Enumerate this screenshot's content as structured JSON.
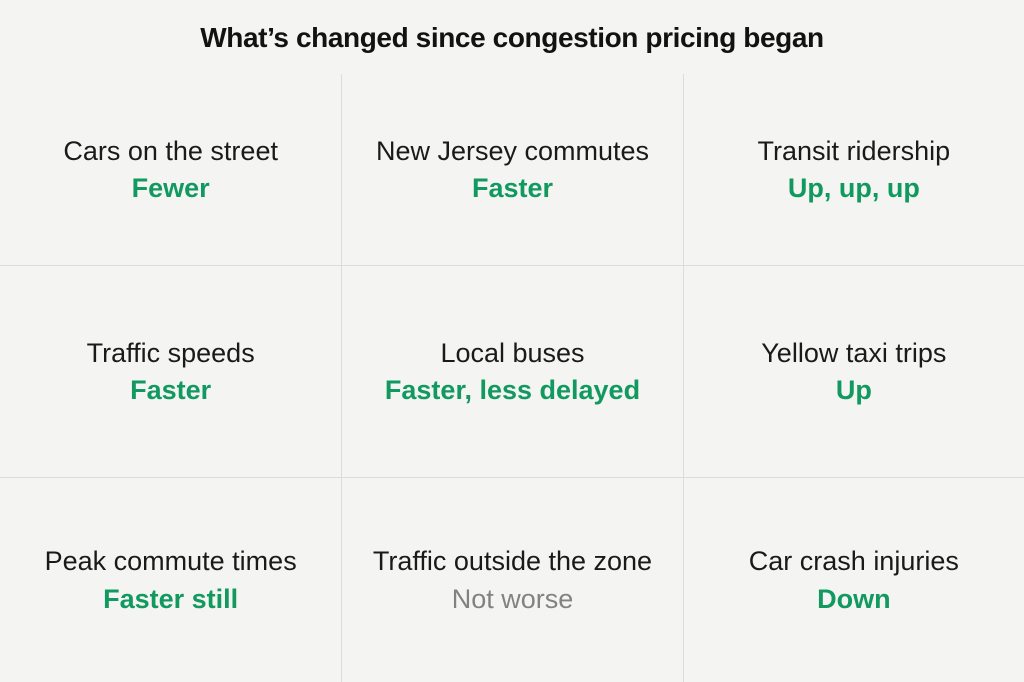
{
  "title": "What’s changed since congestion pricing began",
  "colors": {
    "background": "#f4f4f3",
    "label_text": "#1a1a1a",
    "positive_value": "#12995f",
    "neutral_value": "#828282",
    "grid_line": "#dcdcdb"
  },
  "chart_data": {
    "type": "table",
    "title": "What’s changed since congestion pricing began",
    "grid": "3x3",
    "legend_position": "none",
    "cells": [
      {
        "label": "Cars on the street",
        "value": "Fewer",
        "tone": "positive"
      },
      {
        "label": "New Jersey commutes",
        "value": "Faster",
        "tone": "positive"
      },
      {
        "label": "Transit ridership",
        "value": "Up, up, up",
        "tone": "positive"
      },
      {
        "label": "Traffic speeds",
        "value": "Faster",
        "tone": "positive"
      },
      {
        "label": "Local buses",
        "value": "Faster, less delayed",
        "tone": "positive"
      },
      {
        "label": "Yellow taxi trips",
        "value": "Up",
        "tone": "positive"
      },
      {
        "label": "Peak commute times",
        "value": "Faster still",
        "tone": "positive"
      },
      {
        "label": "Traffic outside the zone",
        "value": "Not worse",
        "tone": "neutral"
      },
      {
        "label": "Car crash injuries",
        "value": "Down",
        "tone": "positive"
      }
    ]
  }
}
